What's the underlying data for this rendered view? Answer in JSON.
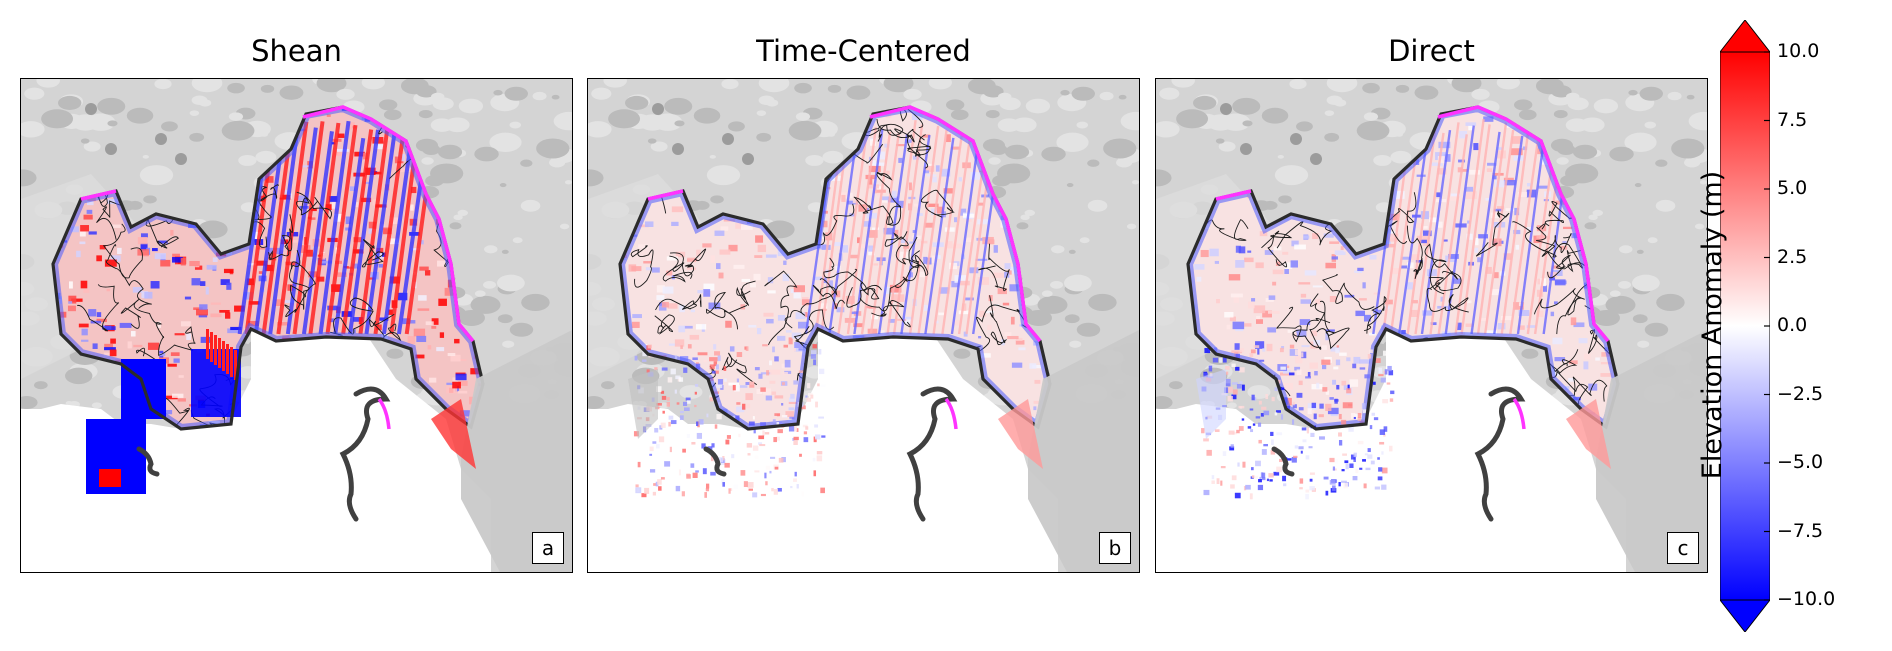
{
  "colors": {
    "min": "#0000ff",
    "mid": "#ffffff",
    "max": "#ff0000",
    "hillshade": "#d4d4d4",
    "outline": "#2b2b2b",
    "magenta": "#ff33ff",
    "contour": "#1a1a1a"
  },
  "chart_data": [
    {
      "type": "heatmap",
      "title": "Shean",
      "panel_label": "a",
      "variable": "Elevation Anomaly (m)",
      "colorscale": "bwr",
      "range": [
        -10.0,
        10.0
      ],
      "notable": "large saturated blue (<= -10 m) block in lower-left terminus region, red patch at bottom"
    },
    {
      "type": "heatmap",
      "title": "Time-Centered",
      "panel_label": "b",
      "variable": "Elevation Anomaly (m)",
      "colorscale": "bwr",
      "range": [
        -10.0,
        10.0
      ],
      "notable": "low-amplitude red/blue speckle across lower glacier tongue"
    },
    {
      "type": "heatmap",
      "title": "Direct",
      "panel_label": "c",
      "variable": "Elevation Anomaly (m)",
      "colorscale": "bwr",
      "range": [
        -10.0,
        10.0
      ],
      "notable": "blue speckle concentrated near terminus and central column"
    }
  ],
  "colorbar": {
    "label": "Elevation Anomaly (m)",
    "min": -10.0,
    "max": 10.0,
    "extend": "both",
    "ticks": [
      "10.0",
      "7.5",
      "5.0",
      "2.5",
      "0.0",
      "−2.5",
      "−5.0",
      "−7.5",
      "−10.0"
    ]
  }
}
